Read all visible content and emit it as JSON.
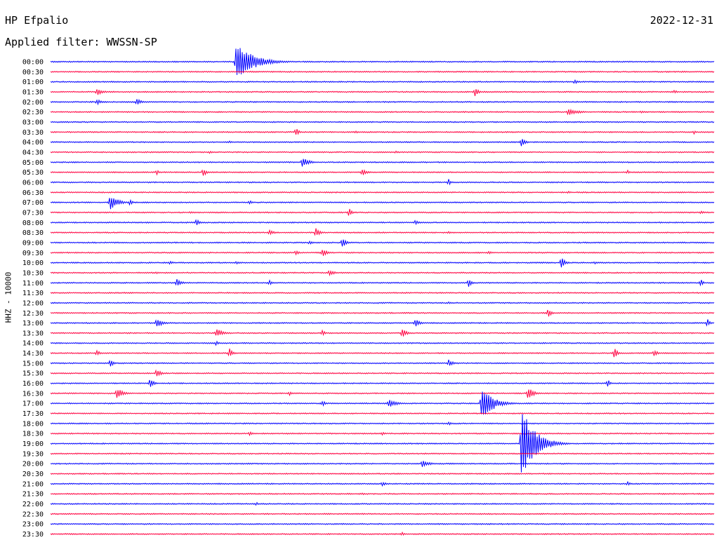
{
  "header": {
    "station": "HP Efpalio",
    "date": "2022-12-31",
    "filter": "Applied filter: WWSSN-SP"
  },
  "channel_label": "HHZ - 10000",
  "colors": {
    "even_trace": "#0000ff",
    "odd_trace": "#ff0040",
    "text": "#000000"
  },
  "chart_data": {
    "type": "line",
    "title": "HP Efpalio",
    "subtitle": "Applied filter: WWSSN-SP",
    "ylabel": "HHZ - 10000",
    "xlabel": "",
    "date": "2022-12-31",
    "traces": [
      {
        "label": "00:00",
        "events": [
          [
            0.28,
            -28,
            36,
            22
          ],
          [
            0.32,
            6,
            8,
            5
          ]
        ]
      },
      {
        "label": "00:30",
        "events": []
      },
      {
        "label": "01:00",
        "events": [
          [
            0.79,
            3,
            6,
            5
          ]
        ]
      },
      {
        "label": "01:30",
        "events": [
          [
            0.07,
            5,
            12,
            8
          ],
          [
            0.64,
            7,
            8,
            4
          ],
          [
            0.94,
            3,
            6,
            4
          ]
        ]
      },
      {
        "label": "02:00",
        "events": [
          [
            0.07,
            4,
            12,
            6
          ],
          [
            0.13,
            5,
            10,
            6
          ]
        ]
      },
      {
        "label": "02:30",
        "events": [
          [
            0.78,
            5,
            30,
            14
          ],
          [
            0.89,
            2,
            10,
            4
          ]
        ]
      },
      {
        "label": "03:00",
        "events": []
      },
      {
        "label": "03:30",
        "events": [
          [
            0.37,
            6,
            8,
            4
          ],
          [
            0.46,
            2,
            20,
            5
          ],
          [
            0.97,
            3,
            8,
            3
          ]
        ]
      },
      {
        "label": "04:00",
        "events": [
          [
            0.27,
            2,
            20,
            5
          ],
          [
            0.71,
            7,
            12,
            5
          ]
        ]
      },
      {
        "label": "04:30",
        "events": [
          [
            0.24,
            2,
            10,
            4
          ],
          [
            0.52,
            2,
            8,
            3
          ]
        ]
      },
      {
        "label": "05:00",
        "events": [
          [
            0.38,
            8,
            16,
            8
          ]
        ]
      },
      {
        "label": "05:30",
        "events": [
          [
            0.16,
            4,
            6,
            3
          ],
          [
            0.23,
            7,
            8,
            4
          ],
          [
            0.47,
            5,
            12,
            6
          ],
          [
            0.87,
            3,
            6,
            3
          ]
        ]
      },
      {
        "label": "06:00",
        "events": [
          [
            0.6,
            5,
            6,
            3
          ]
        ]
      },
      {
        "label": "06:30",
        "events": [
          [
            0.78,
            2,
            20,
            5
          ]
        ]
      },
      {
        "label": "07:00",
        "events": [
          [
            0.09,
            12,
            18,
            10
          ],
          [
            0.12,
            5,
            6,
            3
          ],
          [
            0.3,
            3,
            8,
            4
          ]
        ]
      },
      {
        "label": "07:30",
        "events": [
          [
            0.21,
            2,
            12,
            4
          ],
          [
            0.45,
            6,
            8,
            4
          ],
          [
            0.98,
            3,
            10,
            4
          ]
        ]
      },
      {
        "label": "08:00",
        "events": [
          [
            0.22,
            6,
            8,
            4
          ],
          [
            0.55,
            4,
            12,
            5
          ]
        ]
      },
      {
        "label": "08:30",
        "events": [
          [
            0.33,
            4,
            12,
            6
          ],
          [
            0.4,
            7,
            10,
            5
          ],
          [
            0.6,
            2,
            12,
            4
          ]
        ]
      },
      {
        "label": "09:00",
        "events": [
          [
            0.39,
            3,
            10,
            5
          ],
          [
            0.44,
            7,
            10,
            5
          ]
        ]
      },
      {
        "label": "09:30",
        "events": [
          [
            0.37,
            4,
            6,
            4
          ],
          [
            0.41,
            7,
            8,
            5
          ],
          [
            0.66,
            3,
            6,
            4
          ]
        ]
      },
      {
        "label": "10:00",
        "events": [
          [
            0.18,
            3,
            6,
            4
          ],
          [
            0.28,
            3,
            6,
            4
          ],
          [
            0.77,
            8,
            10,
            5
          ],
          [
            0.82,
            2,
            14,
            4
          ]
        ]
      },
      {
        "label": "10:30",
        "events": [
          [
            0.42,
            4,
            24,
            8
          ],
          [
            0.16,
            2,
            10,
            4
          ]
        ]
      },
      {
        "label": "11:00",
        "events": [
          [
            0.19,
            6,
            14,
            6
          ],
          [
            0.33,
            4,
            6,
            3
          ],
          [
            0.63,
            6,
            8,
            4
          ],
          [
            0.98,
            6,
            6,
            3
          ]
        ]
      },
      {
        "label": "11:30",
        "events": []
      },
      {
        "label": "12:00",
        "events": [
          [
            0.6,
            2,
            20,
            5
          ]
        ]
      },
      {
        "label": "12:30",
        "events": [
          [
            0.75,
            7,
            8,
            4
          ]
        ]
      },
      {
        "label": "13:00",
        "events": [
          [
            0.16,
            7,
            20,
            8
          ],
          [
            0.55,
            7,
            10,
            5
          ],
          [
            0.99,
            6,
            6,
            3
          ]
        ]
      },
      {
        "label": "13:30",
        "events": [
          [
            0.25,
            7,
            18,
            8
          ],
          [
            0.41,
            5,
            6,
            3
          ],
          [
            0.53,
            8,
            10,
            5
          ]
        ]
      },
      {
        "label": "14:00",
        "events": [
          [
            0.25,
            4,
            6,
            3
          ]
        ]
      },
      {
        "label": "14:30",
        "events": [
          [
            0.07,
            4,
            10,
            5
          ],
          [
            0.27,
            7,
            8,
            4
          ],
          [
            0.85,
            8,
            8,
            4
          ],
          [
            0.91,
            6,
            8,
            4
          ]
        ]
      },
      {
        "label": "15:00",
        "events": [
          [
            0.09,
            6,
            8,
            4
          ],
          [
            0.6,
            5,
            16,
            6
          ]
        ]
      },
      {
        "label": "15:30",
        "events": [
          [
            0.16,
            7,
            10,
            5
          ]
        ]
      },
      {
        "label": "16:00",
        "events": [
          [
            0.15,
            7,
            10,
            5
          ],
          [
            0.84,
            6,
            6,
            3
          ]
        ]
      },
      {
        "label": "16:30",
        "events": [
          [
            0.1,
            8,
            16,
            8
          ],
          [
            0.36,
            3,
            10,
            4
          ],
          [
            0.72,
            9,
            14,
            7
          ]
        ]
      },
      {
        "label": "17:00",
        "events": [
          [
            0.41,
            4,
            10,
            5
          ],
          [
            0.51,
            6,
            26,
            10
          ],
          [
            0.65,
            27,
            22,
            14
          ]
        ]
      },
      {
        "label": "17:30",
        "events": []
      },
      {
        "label": "18:00",
        "events": [
          [
            0.6,
            3,
            12,
            5
          ]
        ]
      },
      {
        "label": "18:30",
        "events": [
          [
            0.3,
            3,
            16,
            6
          ],
          [
            0.5,
            3,
            6,
            3
          ]
        ]
      },
      {
        "label": "19:00",
        "events": [
          [
            0.71,
            52,
            28,
            18
          ]
        ]
      },
      {
        "label": "19:30",
        "events": []
      },
      {
        "label": "20:00",
        "events": [
          [
            0.56,
            5,
            24,
            10
          ]
        ]
      },
      {
        "label": "20:30",
        "events": []
      },
      {
        "label": "21:00",
        "events": [
          [
            0.5,
            3,
            16,
            6
          ],
          [
            0.87,
            3,
            10,
            4
          ]
        ]
      },
      {
        "label": "21:30",
        "events": [
          [
            0.47,
            2,
            12,
            4
          ]
        ]
      },
      {
        "label": "22:00",
        "events": [
          [
            0.31,
            3,
            6,
            3
          ]
        ]
      },
      {
        "label": "22:30",
        "events": []
      },
      {
        "label": "23:00",
        "events": []
      },
      {
        "label": "23:30",
        "events": [
          [
            0.53,
            3,
            8,
            4
          ]
        ]
      }
    ]
  }
}
